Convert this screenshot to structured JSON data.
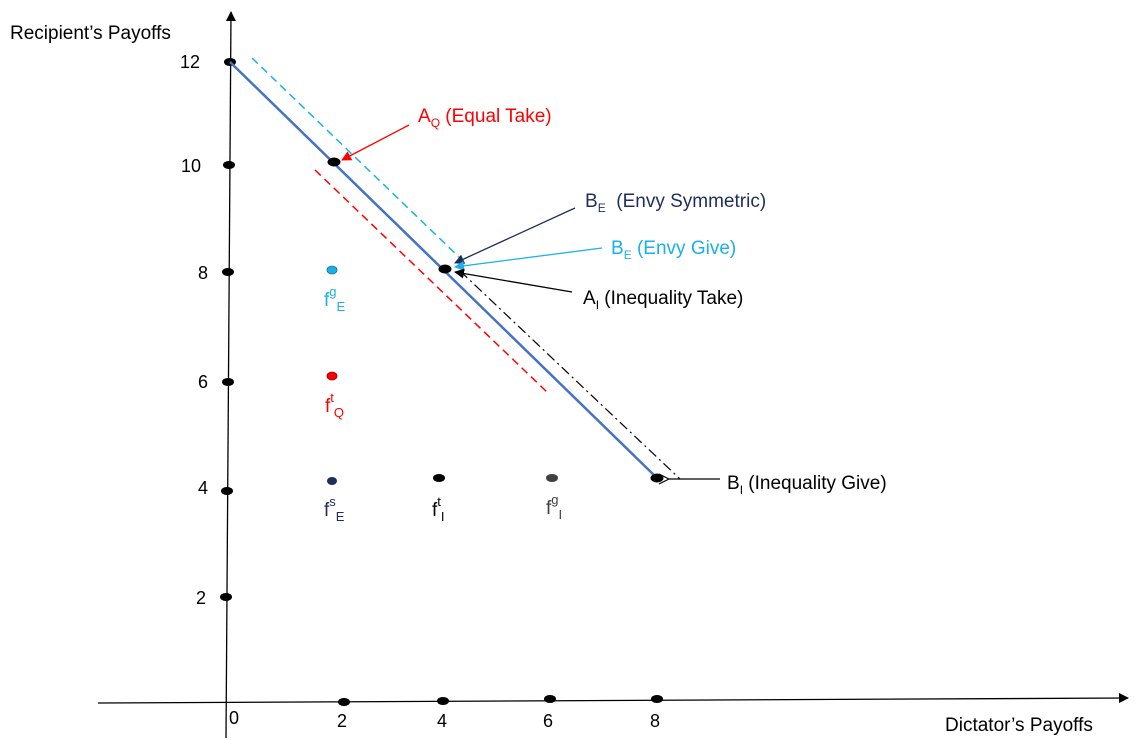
{
  "axes": {
    "x_label": "Dictator’s Payoffs",
    "y_label": "Recipient’s Payoffs",
    "origin_label": "0",
    "x_ticks": [
      "2",
      "4",
      "6",
      "8"
    ],
    "y_ticks": [
      "2",
      "4",
      "6",
      "8",
      "10",
      "12"
    ]
  },
  "annotations": {
    "a_q": {
      "main": "A",
      "sub": "Q",
      "rest": " (Equal Take)",
      "color": "#ff0000"
    },
    "b_e_sym": {
      "main": "B",
      "sub": "E",
      "rest": "  (Envy Symmetric)",
      "color": "#1f2d5c"
    },
    "b_e_give": {
      "main": "B",
      "sub": "E",
      "rest": " (Envy Give)",
      "color": "#1ab0e8"
    },
    "a_i": {
      "main": "A",
      "sub": "I",
      "rest": " (Inequality Take)",
      "color": "#000000"
    },
    "b_i": {
      "main": "B",
      "sub": "I",
      "rest": " (Inequality Give)",
      "color": "#000000"
    }
  },
  "points": {
    "fg_e": {
      "main": "f",
      "sup": "g",
      "sub": "E",
      "color": "#1ab0e8"
    },
    "ft_q": {
      "main": "f",
      "sup": "t",
      "sub": "Q",
      "color": "#ff0000"
    },
    "fs_e": {
      "main": "f",
      "sup": "s",
      "sub": "E",
      "color": "#1f2d5c"
    },
    "ft_i": {
      "main": "f",
      "sup": "t",
      "sub": "I",
      "color": "#000000"
    },
    "fg_i": {
      "main": "f",
      "sup": "g",
      "sub": "I",
      "color": "#404040"
    }
  },
  "colors": {
    "budget_line": "#4472c4",
    "envy_give_line": "#1ab0e8",
    "equal_take_line": "#ff0000",
    "inequality_line": "#000000"
  }
}
